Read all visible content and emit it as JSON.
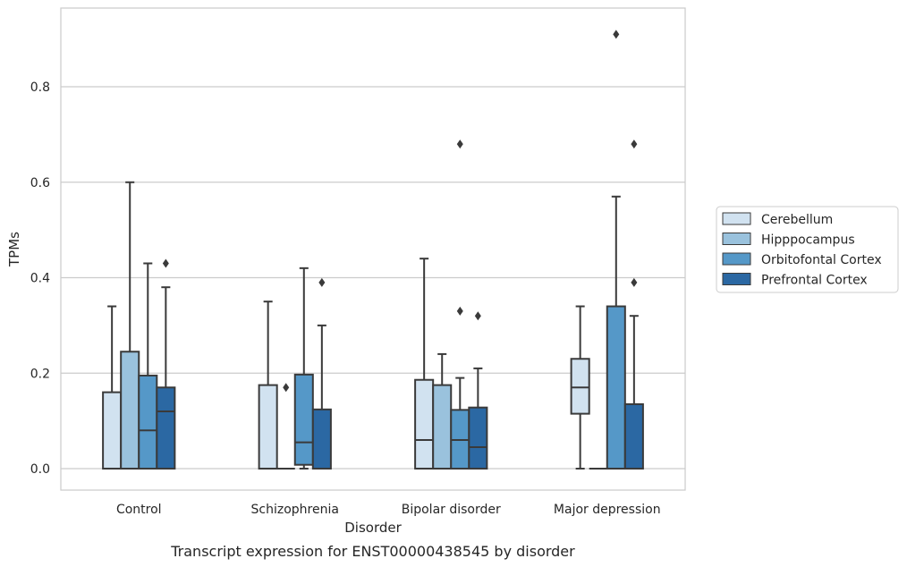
{
  "chart_data": {
    "type": "box",
    "title": "",
    "caption": "Transcript expression for ENST00000438545 by disorder",
    "xlabel": "Disorder",
    "ylabel": "TPMs",
    "ylim": [
      -0.045,
      0.965
    ],
    "yticks": [
      0.0,
      0.2,
      0.4,
      0.6,
      0.8
    ],
    "ytick_labels": [
      "0.0",
      "0.2",
      "0.4",
      "0.6",
      "0.8"
    ],
    "grid": "horizontal",
    "legend_position": "right",
    "categories": [
      "Control",
      "Schizophrenia",
      "Bipolar disorder",
      "Major depression"
    ],
    "series": [
      {
        "name": "Cerebellum",
        "color": "#d1e2f0",
        "boxes": [
          {
            "q1": 0.0,
            "median": 0.0,
            "q3": 0.16,
            "whisker_low": 0.0,
            "whisker_high": 0.34,
            "outliers": []
          },
          {
            "q1": 0.0,
            "median": 0.0,
            "q3": 0.175,
            "whisker_low": 0.0,
            "whisker_high": 0.35,
            "outliers": []
          },
          {
            "q1": 0.0,
            "median": 0.06,
            "q3": 0.186,
            "whisker_low": 0.0,
            "whisker_high": 0.44,
            "outliers": []
          },
          {
            "q1": 0.115,
            "median": 0.17,
            "q3": 0.23,
            "whisker_low": 0.0,
            "whisker_high": 0.34,
            "outliers": []
          }
        ]
      },
      {
        "name": "Hipppocampus",
        "color": "#9ac2dd",
        "boxes": [
          {
            "q1": 0.0,
            "median": 0.0,
            "q3": 0.245,
            "whisker_low": 0.0,
            "whisker_high": 0.6,
            "outliers": []
          },
          {
            "q1": 0.0,
            "median": 0.0,
            "q3": 0.0,
            "whisker_low": 0.0,
            "whisker_high": 0.0,
            "outliers": [
              0.17
            ]
          },
          {
            "q1": 0.0,
            "median": 0.0,
            "q3": 0.175,
            "whisker_low": 0.0,
            "whisker_high": 0.24,
            "outliers": []
          },
          {
            "q1": 0.0,
            "median": 0.0,
            "q3": 0.0,
            "whisker_low": 0.0,
            "whisker_high": 0.0,
            "outliers": []
          }
        ]
      },
      {
        "name": "Orbitofontal Cortex",
        "color": "#5598c8",
        "boxes": [
          {
            "q1": 0.0,
            "median": 0.08,
            "q3": 0.195,
            "whisker_low": 0.0,
            "whisker_high": 0.43,
            "outliers": []
          },
          {
            "q1": 0.008,
            "median": 0.055,
            "q3": 0.197,
            "whisker_low": 0.0,
            "whisker_high": 0.42,
            "outliers": []
          },
          {
            "q1": 0.0,
            "median": 0.06,
            "q3": 0.123,
            "whisker_low": 0.0,
            "whisker_high": 0.19,
            "outliers": [
              0.33,
              0.68
            ]
          },
          {
            "q1": 0.0,
            "median": 0.0,
            "q3": 0.34,
            "whisker_low": 0.0,
            "whisker_high": 0.57,
            "outliers": [
              0.91
            ]
          }
        ]
      },
      {
        "name": "Prefrontal Cortex",
        "color": "#2b68a3",
        "boxes": [
          {
            "q1": 0.0,
            "median": 0.12,
            "q3": 0.17,
            "whisker_low": 0.0,
            "whisker_high": 0.38,
            "outliers": [
              0.43
            ]
          },
          {
            "q1": 0.0,
            "median": 0.0,
            "q3": 0.124,
            "whisker_low": 0.0,
            "whisker_high": 0.3,
            "outliers": [
              0.39
            ]
          },
          {
            "q1": 0.0,
            "median": 0.045,
            "q3": 0.128,
            "whisker_low": 0.0,
            "whisker_high": 0.21,
            "outliers": [
              0.32
            ]
          },
          {
            "q1": 0.0,
            "median": 0.0,
            "q3": 0.135,
            "whisker_low": 0.0,
            "whisker_high": 0.32,
            "outliers": [
              0.39,
              0.68
            ]
          }
        ]
      }
    ]
  }
}
